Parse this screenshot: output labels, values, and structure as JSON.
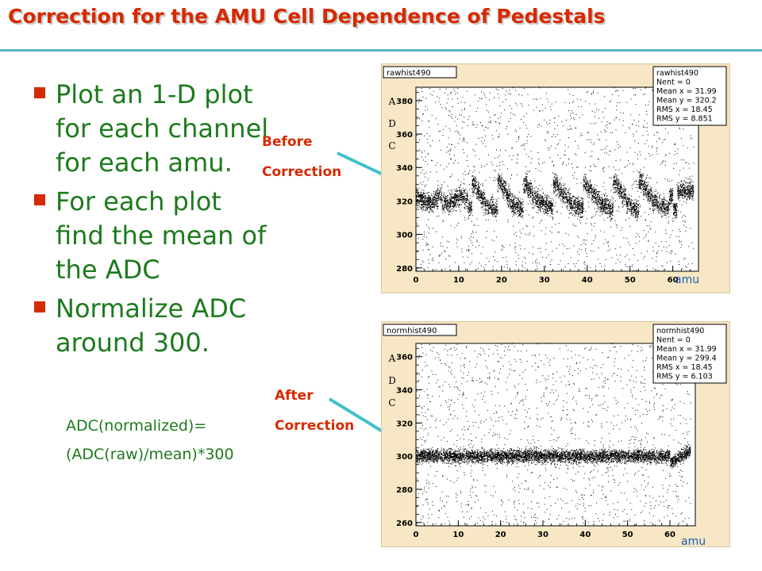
{
  "title": "Correction for the AMU Cell Dependence of Pedestals",
  "bullets": [
    "Plot an 1-D plot for each channel for each amu.",
    "For each plot find the mean of the ADC",
    "Normalize ADC around 300."
  ],
  "formula": [
    "ADC(normalized)=",
    "(ADC(raw)/mean)*300"
  ],
  "annotations": {
    "before": [
      "Before",
      "Correction"
    ],
    "after": [
      "After",
      "Correction"
    ]
  },
  "colors": {
    "title": "#d62a00",
    "bullet_text": "#1d7a1d",
    "rule": "#58b4c4",
    "arrow": "#40c0c8",
    "amu_label": "#1a5fb0",
    "plot_bg": "#f7e7c5"
  },
  "chart_data": [
    {
      "type": "scatter",
      "title": "rawhist490",
      "xlabel": "amu",
      "ylabel": "ADC",
      "xlim": [
        0,
        66
      ],
      "ylim": [
        278,
        388
      ],
      "x_ticks": [
        0,
        10,
        20,
        30,
        40,
        50,
        60
      ],
      "y_ticks": [
        280,
        300,
        320,
        340,
        360,
        380
      ],
      "legend": "top-right",
      "stats": [
        [
          "rawhist490",
          ""
        ],
        [
          "Nent = 0",
          ""
        ],
        [
          "Mean x = 31.99",
          ""
        ],
        [
          "Mean y = 320.2",
          ""
        ],
        [
          "RMS x = 18.45",
          ""
        ],
        [
          "RMS y = 8.851",
          ""
        ]
      ],
      "band_center": 320,
      "band_halfwidth": 7,
      "band_means": [
        322,
        320,
        319,
        318,
        321,
        323,
        319,
        318,
        320,
        322,
        324,
        321,
        316,
        330,
        326,
        322,
        317,
        316,
        315,
        332,
        328,
        323,
        318,
        317,
        315,
        330,
        326,
        322,
        320,
        319,
        318,
        316,
        330,
        327,
        324,
        321,
        318,
        317,
        316,
        330,
        328,
        324,
        321,
        318,
        317,
        315,
        330,
        327,
        323,
        319,
        316,
        315,
        331,
        328,
        324,
        320,
        319,
        317,
        316,
        322,
        315,
        326
      ]
    },
    {
      "type": "scatter",
      "title": "normhist490",
      "xlabel": "amu",
      "ylabel": "ADC",
      "xlim": [
        0,
        66
      ],
      "ylim": [
        258,
        368
      ],
      "x_ticks": [
        0,
        10,
        20,
        30,
        40,
        50,
        60
      ],
      "y_ticks": [
        260,
        280,
        300,
        320,
        340,
        360
      ],
      "legend": "top-right",
      "stats": [
        [
          "normhist490",
          ""
        ],
        [
          "Nent = 0",
          ""
        ],
        [
          "Mean x = 31.99",
          ""
        ],
        [
          "Mean y = 299.4",
          ""
        ],
        [
          "RMS x = 18.45",
          ""
        ],
        [
          "RMS y = 6.103",
          ""
        ]
      ],
      "band_center": 300,
      "band_halfwidth": 5
    }
  ]
}
